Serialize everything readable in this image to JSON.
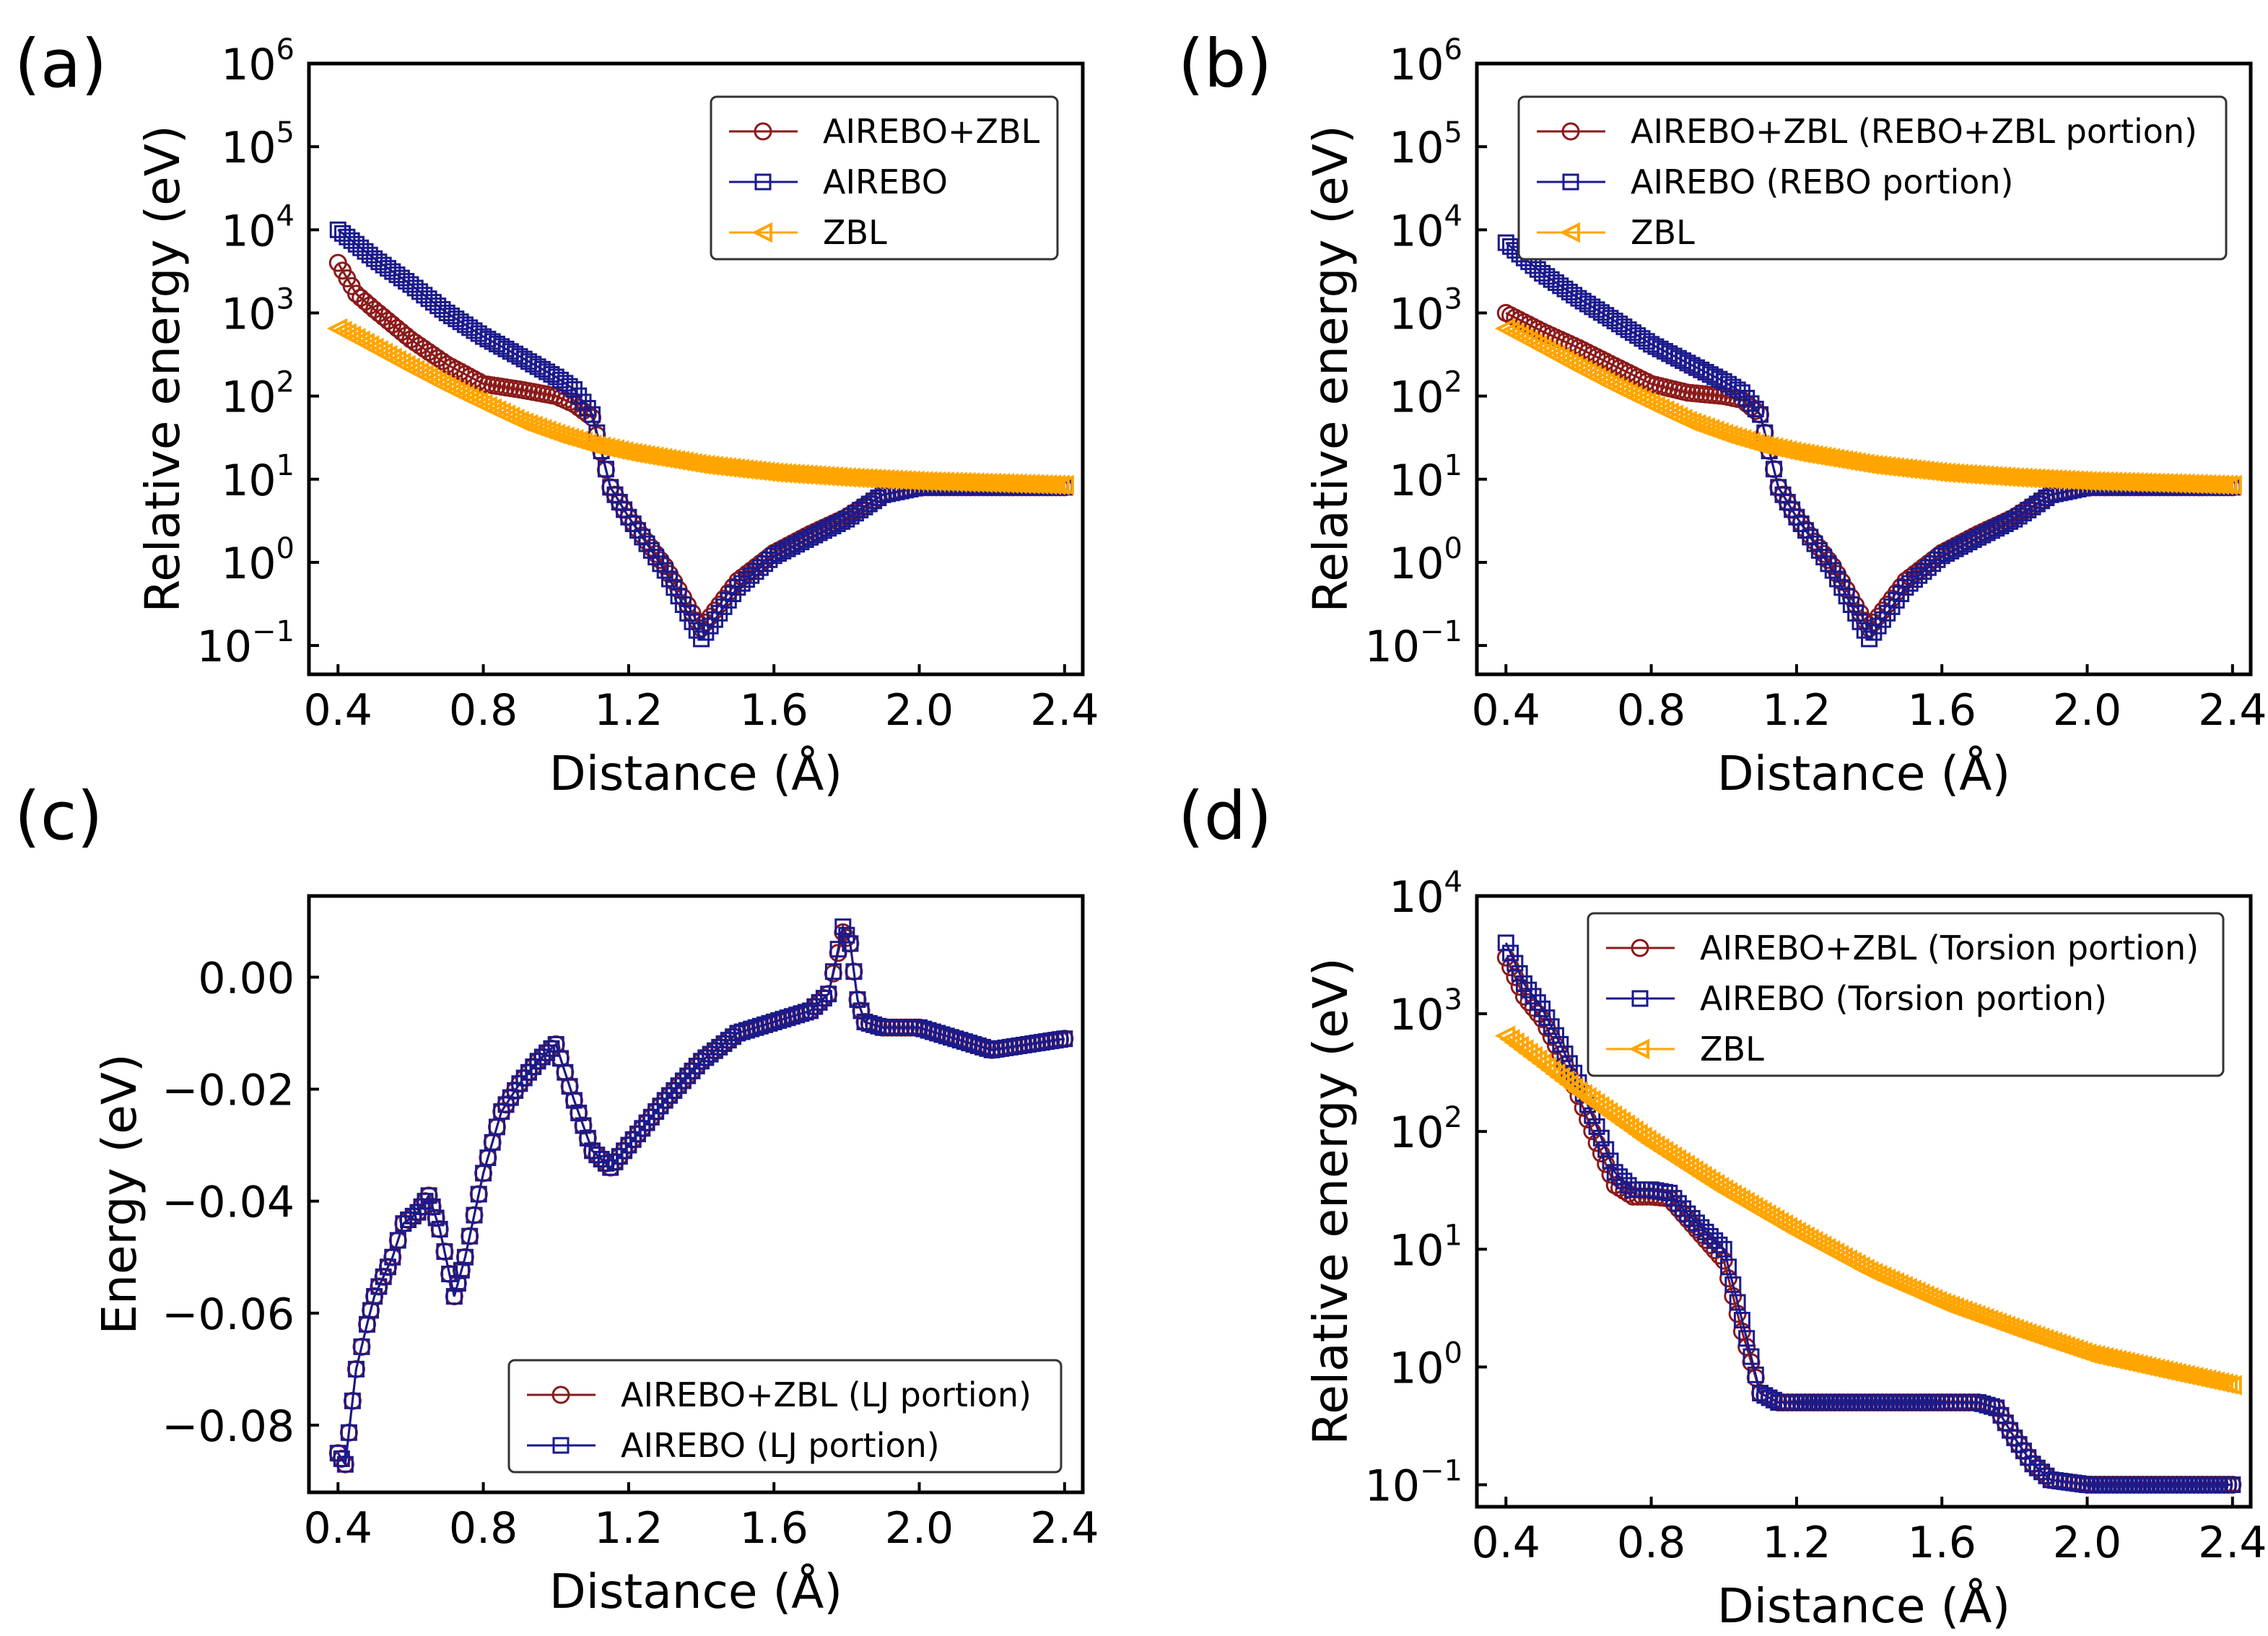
{
  "colors": {
    "red": "#8B1A1A",
    "blue": "#1A1A8C",
    "orange": "#FFA500"
  },
  "chart_data": [
    {
      "id": "a",
      "panel_label": "(a)",
      "type": "line",
      "yscale": "log",
      "xlabel": "Distance (Å)",
      "ylabel": "Relative energy (eV)",
      "xlim": [
        0.32,
        2.45
      ],
      "ylim": [
        0.045,
        1000000
      ],
      "xticks": [
        "0.4",
        "0.8",
        "1.2",
        "1.6",
        "2.0",
        "2.4"
      ],
      "yticks": [
        {
          "base": "10",
          "exp": "6"
        },
        {
          "base": "10",
          "exp": "5"
        },
        {
          "base": "10",
          "exp": "4"
        },
        {
          "base": "10",
          "exp": "3"
        },
        {
          "base": "10",
          "exp": "2"
        },
        {
          "base": "10",
          "exp": "1"
        },
        {
          "base": "10",
          "exp": "0"
        },
        {
          "base": "10",
          "exp": "−1"
        }
      ],
      "legend": {
        "position": "upper-right",
        "entries": [
          "AIREBO+ZBL",
          "AIREBO",
          "ZBL"
        ]
      },
      "series": [
        {
          "name": "AIREBO+ZBL",
          "color": "red",
          "marker": "circle",
          "x": [
            0.4,
            0.45,
            0.5,
            0.6,
            0.7,
            0.8,
            0.9,
            1.0,
            1.05,
            1.1,
            1.15,
            1.2,
            1.3,
            1.4,
            1.5,
            1.6,
            1.7,
            1.8,
            1.9,
            2.0,
            2.2,
            2.4
          ],
          "y": [
            4000,
            1700,
            1100,
            480,
            240,
            140,
            120,
            100,
            80,
            55,
            8,
            3.5,
            0.9,
            0.16,
            0.6,
            1.3,
            2.2,
            3.5,
            6.5,
            8,
            8,
            8
          ]
        },
        {
          "name": "AIREBO",
          "color": "blue",
          "marker": "square",
          "x": [
            0.4,
            0.5,
            0.6,
            0.7,
            0.8,
            0.9,
            1.0,
            1.05,
            1.1,
            1.15,
            1.2,
            1.3,
            1.4,
            1.5,
            1.6,
            1.7,
            1.8,
            1.9,
            2.0,
            2.2,
            2.4
          ],
          "y": [
            10000,
            4500,
            2200,
            1000,
            520,
            300,
            170,
            120,
            60,
            8,
            3.5,
            0.8,
            0.12,
            0.5,
            1.2,
            2.0,
            3.3,
            6.5,
            8,
            8,
            8
          ]
        },
        {
          "name": "ZBL",
          "color": "orange",
          "marker": "triangle-left",
          "x": [
            0.4,
            0.5,
            0.6,
            0.7,
            0.8,
            0.9,
            1.0,
            1.1,
            1.2,
            1.4,
            1.6,
            1.8,
            2.0,
            2.2,
            2.4
          ],
          "y": [
            650,
            380,
            220,
            130,
            80,
            50,
            35,
            26,
            21,
            15,
            12,
            10.5,
            9.5,
            9,
            8.5
          ]
        }
      ]
    },
    {
      "id": "b",
      "panel_label": "(b)",
      "type": "line",
      "yscale": "log",
      "xlabel": "Distance (Å)",
      "ylabel": "Relative energy (eV)",
      "xlim": [
        0.32,
        2.45
      ],
      "ylim": [
        0.045,
        1000000
      ],
      "xticks": [
        "0.4",
        "0.8",
        "1.2",
        "1.6",
        "2.0",
        "2.4"
      ],
      "yticks": [
        {
          "base": "10",
          "exp": "6"
        },
        {
          "base": "10",
          "exp": "5"
        },
        {
          "base": "10",
          "exp": "4"
        },
        {
          "base": "10",
          "exp": "3"
        },
        {
          "base": "10",
          "exp": "2"
        },
        {
          "base": "10",
          "exp": "1"
        },
        {
          "base": "10",
          "exp": "0"
        },
        {
          "base": "10",
          "exp": "−1"
        }
      ],
      "legend": {
        "position": "upper-right",
        "entries": [
          "AIREBO+ZBL (REBO+ZBL portion)",
          "AIREBO (REBO portion)",
          "ZBL"
        ]
      },
      "series": [
        {
          "name": "AIREBO+ZBL (REBO+ZBL portion)",
          "color": "red",
          "marker": "circle",
          "x": [
            0.4,
            0.5,
            0.6,
            0.7,
            0.8,
            0.9,
            1.0,
            1.05,
            1.1,
            1.15,
            1.2,
            1.3,
            1.4,
            1.5,
            1.6,
            1.7,
            1.8,
            1.9,
            2.0,
            2.2,
            2.4
          ],
          "y": [
            1000,
            600,
            380,
            230,
            140,
            110,
            100,
            90,
            60,
            8,
            3.5,
            0.9,
            0.16,
            0.6,
            1.3,
            2.2,
            3.5,
            6.5,
            8,
            8,
            8
          ]
        },
        {
          "name": "AIREBO (REBO portion)",
          "color": "blue",
          "marker": "square",
          "x": [
            0.4,
            0.5,
            0.6,
            0.7,
            0.8,
            0.9,
            1.0,
            1.05,
            1.1,
            1.15,
            1.2,
            1.3,
            1.4,
            1.5,
            1.6,
            1.7,
            1.8,
            1.9,
            2.0,
            2.2,
            2.4
          ],
          "y": [
            7000,
            3000,
            1500,
            800,
            420,
            250,
            150,
            110,
            60,
            8,
            3.5,
            0.8,
            0.12,
            0.5,
            1.2,
            2.0,
            3.3,
            6.5,
            8,
            8,
            8
          ]
        },
        {
          "name": "ZBL",
          "color": "orange",
          "marker": "triangle-left",
          "x": [
            0.4,
            0.5,
            0.6,
            0.7,
            0.8,
            0.9,
            1.0,
            1.1,
            1.2,
            1.4,
            1.6,
            1.8,
            2.0,
            2.2,
            2.4
          ],
          "y": [
            650,
            380,
            220,
            130,
            80,
            50,
            35,
            26,
            21,
            15,
            12,
            10.5,
            9.5,
            9,
            8.5
          ]
        }
      ]
    },
    {
      "id": "c",
      "panel_label": "(c)",
      "type": "line",
      "yscale": "linear",
      "xlabel": "Distance (Å)",
      "ylabel": "Energy (eV)",
      "xlim": [
        0.32,
        2.45
      ],
      "ylim": [
        -0.092,
        0.0145
      ],
      "xticks": [
        "0.4",
        "0.8",
        "1.2",
        "1.6",
        "2.0",
        "2.4"
      ],
      "yticks": [
        {
          "label": "0.00",
          "value": 0.0
        },
        {
          "label": "−0.02",
          "value": -0.02
        },
        {
          "label": "−0.04",
          "value": -0.04
        },
        {
          "label": "−0.06",
          "value": -0.06
        },
        {
          "label": "−0.08",
          "value": -0.08
        }
      ],
      "legend": {
        "position": "lower-right",
        "entries": [
          "AIREBO+ZBL (LJ portion)",
          "AIREBO (LJ portion)"
        ]
      },
      "series": [
        {
          "name": "AIREBO+ZBL (LJ portion)",
          "color": "red",
          "marker": "circle",
          "x": [
            0.4,
            0.42,
            0.45,
            0.48,
            0.5,
            0.55,
            0.58,
            0.62,
            0.65,
            0.68,
            0.72,
            0.75,
            0.8,
            0.85,
            0.9,
            0.95,
            1.0,
            1.05,
            1.1,
            1.15,
            1.2,
            1.3,
            1.4,
            1.5,
            1.6,
            1.7,
            1.75,
            1.79,
            1.81,
            1.83,
            1.85,
            1.9,
            2.0,
            2.1,
            2.2,
            2.3,
            2.4
          ],
          "y": [
            -0.085,
            -0.087,
            -0.07,
            -0.062,
            -0.057,
            -0.05,
            -0.044,
            -0.042,
            -0.039,
            -0.045,
            -0.057,
            -0.05,
            -0.035,
            -0.024,
            -0.019,
            -0.015,
            -0.012,
            -0.022,
            -0.031,
            -0.034,
            -0.03,
            -0.022,
            -0.015,
            -0.01,
            -0.008,
            -0.006,
            -0.003,
            0.008,
            0.006,
            -0.004,
            -0.008,
            -0.009,
            -0.009,
            -0.011,
            -0.013,
            -0.012,
            -0.011
          ]
        },
        {
          "name": "AIREBO (LJ portion)",
          "color": "blue",
          "marker": "square",
          "x": [
            0.4,
            0.42,
            0.45,
            0.48,
            0.5,
            0.55,
            0.58,
            0.62,
            0.65,
            0.68,
            0.72,
            0.75,
            0.8,
            0.85,
            0.9,
            0.95,
            1.0,
            1.05,
            1.1,
            1.15,
            1.2,
            1.3,
            1.4,
            1.5,
            1.6,
            1.7,
            1.75,
            1.79,
            1.81,
            1.83,
            1.85,
            1.9,
            2.0,
            2.1,
            2.2,
            2.3,
            2.4
          ],
          "y": [
            -0.085,
            -0.087,
            -0.07,
            -0.062,
            -0.057,
            -0.05,
            -0.044,
            -0.042,
            -0.039,
            -0.045,
            -0.057,
            -0.05,
            -0.035,
            -0.024,
            -0.019,
            -0.015,
            -0.012,
            -0.022,
            -0.031,
            -0.034,
            -0.03,
            -0.022,
            -0.015,
            -0.01,
            -0.008,
            -0.006,
            -0.003,
            0.009,
            0.006,
            -0.004,
            -0.008,
            -0.009,
            -0.009,
            -0.011,
            -0.013,
            -0.012,
            -0.011
          ]
        }
      ]
    },
    {
      "id": "d",
      "panel_label": "(d)",
      "type": "line",
      "yscale": "log",
      "xlabel": "Distance (Å)",
      "ylabel": "Relative energy (eV)",
      "xlim": [
        0.32,
        2.45
      ],
      "ylim": [
        0.065,
        10000
      ],
      "xticks": [
        "0.4",
        "0.8",
        "1.2",
        "1.6",
        "2.0",
        "2.4"
      ],
      "yticks": [
        {
          "base": "10",
          "exp": "4"
        },
        {
          "base": "10",
          "exp": "3"
        },
        {
          "base": "10",
          "exp": "2"
        },
        {
          "base": "10",
          "exp": "1"
        },
        {
          "base": "10",
          "exp": "0"
        },
        {
          "base": "10",
          "exp": "−1"
        }
      ],
      "legend": {
        "position": "upper-right",
        "entries": [
          "AIREBO+ZBL (Torsion portion)",
          "AIREBO (Torsion portion)",
          "ZBL"
        ]
      },
      "series": [
        {
          "name": "AIREBO+ZBL (Torsion portion)",
          "color": "red",
          "marker": "circle",
          "x": [
            0.4,
            0.45,
            0.5,
            0.55,
            0.6,
            0.65,
            0.7,
            0.75,
            0.8,
            0.85,
            0.9,
            0.95,
            1.0,
            1.05,
            1.1,
            1.15,
            1.2,
            1.4,
            1.6,
            1.7,
            1.75,
            1.8,
            1.85,
            1.9,
            2.0,
            2.2,
            2.4
          ],
          "y": [
            3000,
            1400,
            900,
            450,
            200,
            80,
            35,
            28,
            28,
            27,
            18,
            12,
            8,
            2,
            0.6,
            0.5,
            0.5,
            0.5,
            0.5,
            0.5,
            0.45,
            0.25,
            0.15,
            0.11,
            0.1,
            0.1,
            0.1
          ]
        },
        {
          "name": "AIREBO (Torsion portion)",
          "color": "blue",
          "marker": "square",
          "x": [
            0.4,
            0.45,
            0.5,
            0.55,
            0.6,
            0.65,
            0.7,
            0.75,
            0.8,
            0.85,
            0.9,
            0.95,
            1.0,
            1.05,
            1.1,
            1.15,
            1.2,
            1.4,
            1.6,
            1.7,
            1.75,
            1.8,
            1.85,
            1.9,
            2.0,
            2.2,
            2.4
          ],
          "y": [
            4000,
            1800,
            1100,
            550,
            260,
            110,
            45,
            32,
            32,
            30,
            20,
            14,
            10,
            2.5,
            0.6,
            0.5,
            0.5,
            0.5,
            0.5,
            0.5,
            0.45,
            0.25,
            0.15,
            0.11,
            0.1,
            0.1,
            0.1
          ]
        },
        {
          "name": "ZBL",
          "color": "orange",
          "marker": "triangle-left",
          "x": [
            0.4,
            0.5,
            0.6,
            0.8,
            1.0,
            1.2,
            1.4,
            1.6,
            1.8,
            2.0,
            2.2,
            2.4
          ],
          "y": [
            650,
            380,
            220,
            80,
            32,
            14,
            6.5,
            3.5,
            2.1,
            1.3,
            0.95,
            0.7
          ]
        }
      ]
    }
  ]
}
